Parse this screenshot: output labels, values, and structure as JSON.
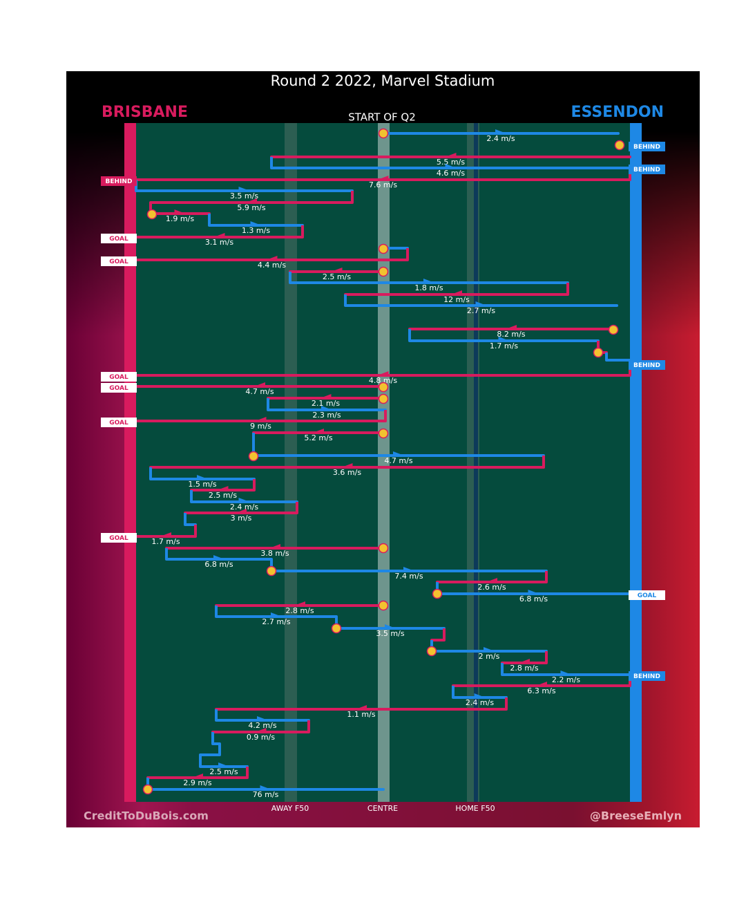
{
  "title": "Round 2 2022, Marvel Stadium",
  "teams": {
    "home": "BRISBANE",
    "away": "ESSENDON"
  },
  "start_label": "START OF Q2",
  "field_labels": [
    "AWAY F50",
    "CENTRE",
    "HOME F50"
  ],
  "credits": {
    "left": "CreditToDuBois.com",
    "right": "@BreeseEmlyn"
  },
  "outcomes": [
    "BEHIND",
    "BEHIND",
    "BEHIND",
    "GOAL",
    "GOAL",
    "BEHIND",
    "GOAL",
    "GOAL",
    "GOAL",
    "GOAL",
    "GOAL",
    "BEHIND"
  ],
  "chains": [
    "2.4 m/s",
    "5.5 m/s",
    "4.6 m/s",
    "7.6 m/s",
    "3.5 m/s",
    "5.9 m/s",
    "1.9 m/s",
    "1.3 m/s",
    "3.1 m/s",
    "4.4 m/s",
    "2.5 m/s",
    "1.8 m/s",
    "12 m/s",
    "2.7 m/s",
    "8.2 m/s",
    "1.7 m/s",
    "4.8 m/s",
    "4.7 m/s",
    "2.1 m/s",
    "2.3 m/s",
    "9 m/s",
    "5.2 m/s",
    "4.7 m/s",
    "3.6 m/s",
    "1.5 m/s",
    "2.5 m/s",
    "2.4 m/s",
    "3 m/s",
    "1.7 m/s",
    "3.8 m/s",
    "6.8 m/s",
    "7.4 m/s",
    "2.6 m/s",
    "6.8 m/s",
    "2.8 m/s",
    "2.7 m/s",
    "3.5 m/s",
    "2 m/s",
    "2.8 m/s",
    "2.2 m/s",
    "6.3 m/s",
    "2.4 m/s",
    "1.1 m/s",
    "4.2 m/s",
    "0.9 m/s",
    "2.5 m/s",
    "2.9 m/s",
    "76 m/s"
  ]
}
